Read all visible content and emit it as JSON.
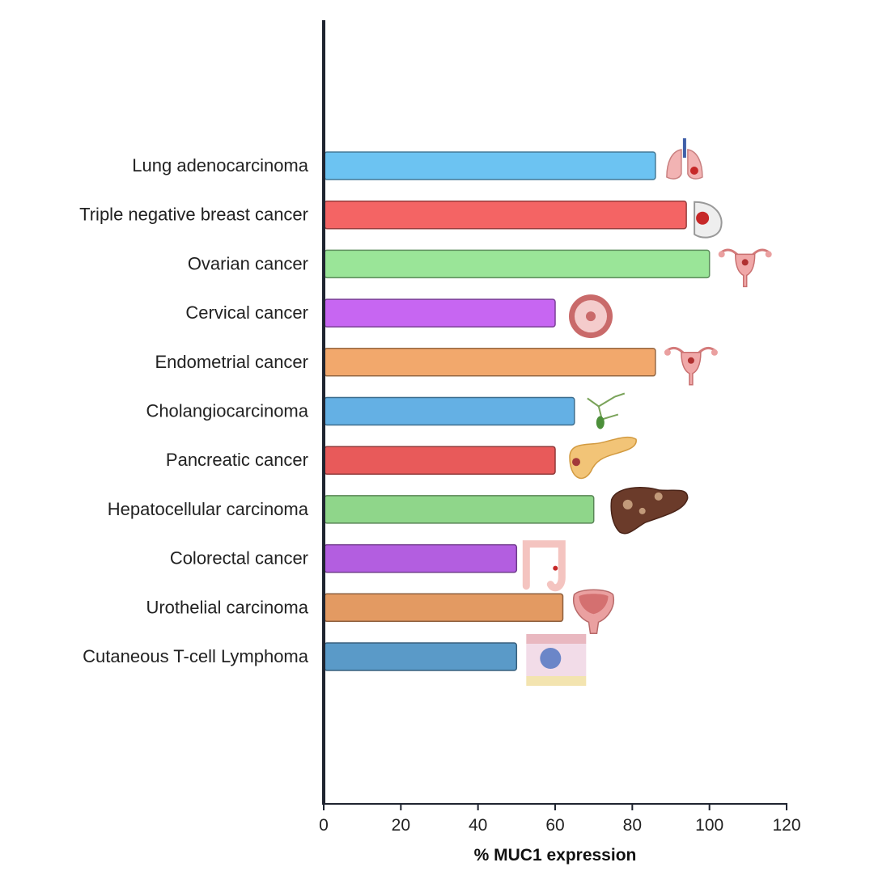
{
  "chart_data": {
    "type": "bar",
    "orientation": "horizontal",
    "categories": [
      "Lung adenocarcinoma",
      "Triple negative breast cancer",
      "Ovarian cancer",
      "Cervical cancer",
      "Endometrial cancer",
      "Cholangiocarcinoma",
      "Pancreatic cancer",
      "Hepatocellular carcinoma",
      "Colorectal cancer",
      "Urothelial carcinoma",
      "Cutaneous T-cell Lymphoma"
    ],
    "values": [
      86,
      94,
      100,
      60,
      86,
      65,
      60,
      70,
      50,
      62,
      50
    ],
    "colors": [
      "#6cc3f2",
      "#f46464",
      "#9ae598",
      "#c766f2",
      "#f2a86c",
      "#64b0e4",
      "#e85a5a",
      "#8fd68a",
      "#b35ee0",
      "#e39a62",
      "#5a9ac8"
    ],
    "icons": [
      "lungs-icon",
      "breast-icon",
      "uterus-icon",
      "cervix-icon",
      "uterus-icon",
      "bile-duct-icon",
      "pancreas-icon",
      "liver-icon",
      "colon-icon",
      "bladder-icon",
      "skin-icon"
    ],
    "xlabel": "% MUC1 expression",
    "ylabel": "",
    "title": "",
    "xlim": [
      0,
      120
    ],
    "xticks": [
      0,
      20,
      40,
      60,
      80,
      100,
      120
    ],
    "grid": false,
    "legend": "none"
  }
}
